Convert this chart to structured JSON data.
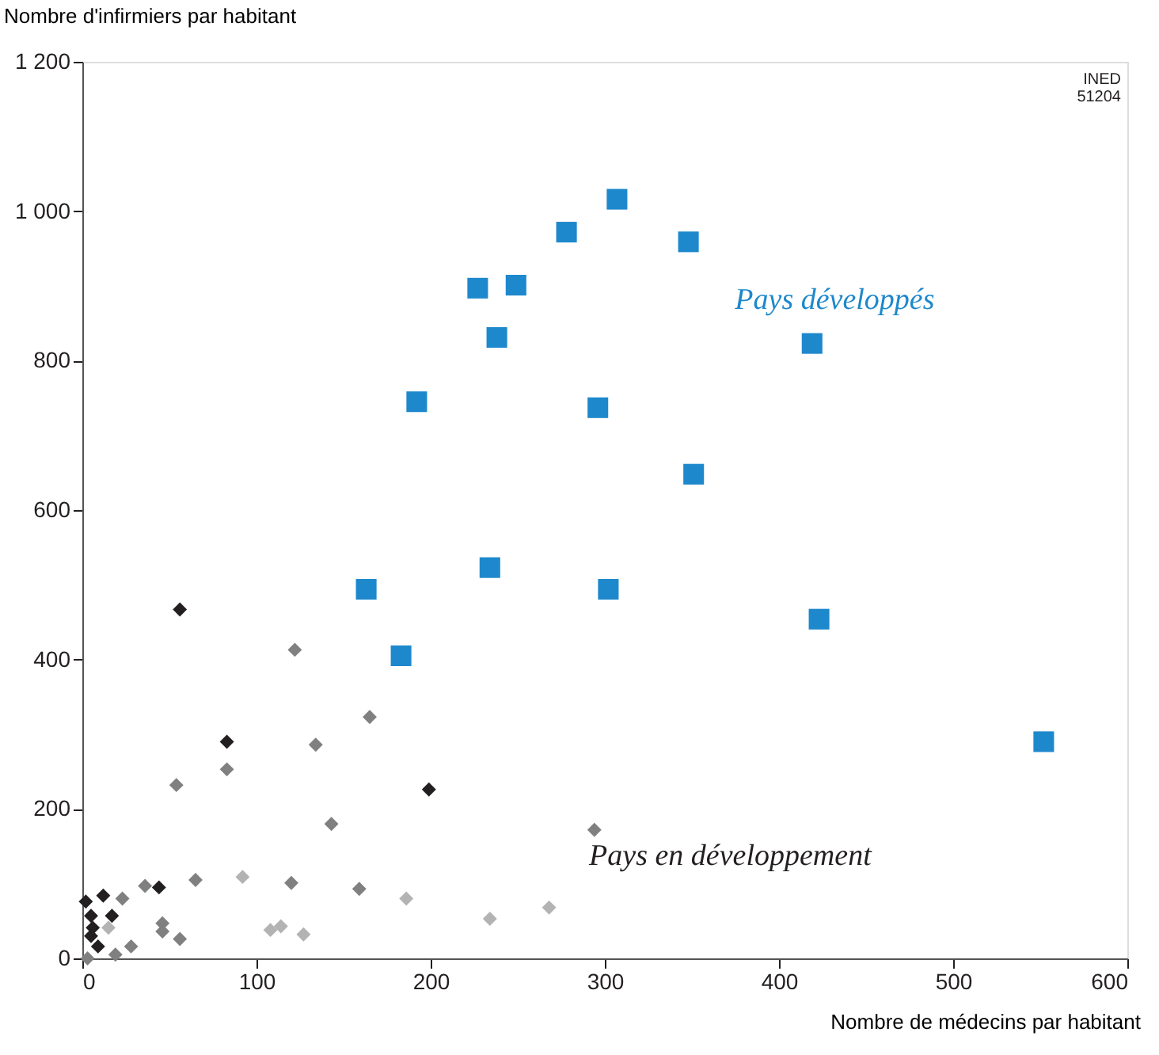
{
  "chart_data": {
    "type": "scatter",
    "xlabel": "Nombre de médecins par habitant",
    "ylabel": "Nombre d'infirmiers par habitant",
    "xlim": [
      0,
      600
    ],
    "xticks": [
      0,
      100,
      200,
      300,
      400,
      500,
      600
    ],
    "ylim": [
      0,
      1200
    ],
    "yticks": [
      0,
      200,
      400,
      600,
      800,
      {
        "value": 1000,
        "label": "1 000"
      },
      {
        "value": 1200,
        "label": "1 200"
      }
    ],
    "grid": false,
    "series": [
      {
        "color": "#1e88cc",
        "marker": "square",
        "x": [
          307,
          278,
          348,
          227,
          249,
          238,
          419,
          192,
          296,
          351,
          234,
          163,
          302,
          183,
          423,
          552
        ],
        "values": [
          1016,
          972,
          959,
          897,
          901,
          831,
          823,
          745,
          737,
          648,
          523,
          494,
          494,
          405,
          454,
          290
        ]
      },
      {
        "color": "#231f20",
        "marker": "diamond",
        "x": [
          56,
          83,
          199,
          44,
          12,
          17,
          2,
          5,
          6,
          9,
          5
        ],
        "values": [
          467,
          290,
          226,
          95,
          84,
          57,
          76,
          57,
          41,
          16,
          30
        ]
      },
      {
        "color": "#808080",
        "marker": "diamond",
        "x": [
          54,
          83,
          134,
          165,
          122,
          143,
          120,
          159,
          65,
          36,
          23,
          46,
          46,
          56,
          28,
          19,
          3,
          294
        ],
        "values": [
          232,
          253,
          286,
          323,
          413,
          180,
          101,
          93,
          105,
          97,
          80,
          47,
          36,
          26,
          16,
          5,
          0,
          172
        ]
      },
      {
        "color": "#b3b3b3",
        "marker": "diamond",
        "x": [
          15,
          92,
          108,
          114,
          127,
          186,
          234,
          268
        ],
        "values": [
          41,
          109,
          38,
          43,
          32,
          80,
          53,
          68
        ]
      }
    ],
    "annotations": [
      "Pays développés",
      "Pays en développement",
      "INED\n51204"
    ]
  }
}
